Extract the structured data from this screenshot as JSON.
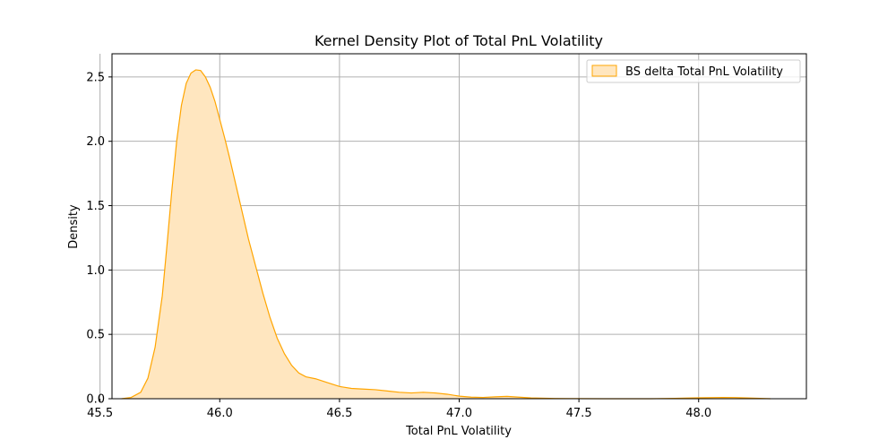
{
  "chart_data": {
    "type": "area",
    "title": "Kernel Density Plot of Total PnL Volatility",
    "xlabel": "Total PnL Volatility",
    "ylabel": "Density",
    "xlim": [
      45.55,
      48.45
    ],
    "ylim": [
      0,
      2.68
    ],
    "xticks": [
      45.5,
      46.0,
      46.5,
      47.0,
      47.5,
      48.0
    ],
    "xtick_labels": [
      "45.5",
      "46.0",
      "46.5",
      "47.0",
      "47.5",
      "48.0"
    ],
    "yticks": [
      0.0,
      0.5,
      1.0,
      1.5,
      2.0,
      2.5
    ],
    "ytick_labels": [
      "0.0",
      "0.5",
      "1.0",
      "1.5",
      "2.0",
      "2.5"
    ],
    "grid": true,
    "legend_position": "top-right",
    "series": [
      {
        "name": "BS delta Total PnL Volatility",
        "line_color": "#ffa500",
        "fill_color": "#ffe6bf",
        "x": [
          45.59,
          45.63,
          45.67,
          45.7,
          45.73,
          45.76,
          45.78,
          45.8,
          45.82,
          45.84,
          45.86,
          45.88,
          45.9,
          45.92,
          45.94,
          45.96,
          45.98,
          46.0,
          46.02,
          46.04,
          46.06,
          46.08,
          46.1,
          46.12,
          46.15,
          46.18,
          46.21,
          46.24,
          46.27,
          46.3,
          46.33,
          46.36,
          46.4,
          46.45,
          46.5,
          46.55,
          46.6,
          46.65,
          46.7,
          46.75,
          46.8,
          46.85,
          46.9,
          46.95,
          47.0,
          47.05,
          47.1,
          47.15,
          47.2,
          47.25,
          47.3,
          47.4,
          47.5,
          47.6,
          47.7,
          47.8,
          47.9,
          48.0,
          48.1,
          48.15,
          48.2,
          48.3
        ],
        "y": [
          0.0,
          0.01,
          0.05,
          0.16,
          0.4,
          0.8,
          1.2,
          1.62,
          2.0,
          2.28,
          2.45,
          2.53,
          2.555,
          2.55,
          2.5,
          2.42,
          2.31,
          2.17,
          2.03,
          1.88,
          1.72,
          1.56,
          1.4,
          1.24,
          1.03,
          0.82,
          0.63,
          0.47,
          0.35,
          0.26,
          0.2,
          0.17,
          0.155,
          0.125,
          0.095,
          0.08,
          0.075,
          0.07,
          0.06,
          0.05,
          0.045,
          0.05,
          0.045,
          0.035,
          0.02,
          0.012,
          0.01,
          0.015,
          0.018,
          0.012,
          0.006,
          0.002,
          0.001,
          0.0,
          0.0,
          0.0,
          0.003,
          0.007,
          0.01,
          0.009,
          0.006,
          0.0
        ]
      }
    ]
  }
}
